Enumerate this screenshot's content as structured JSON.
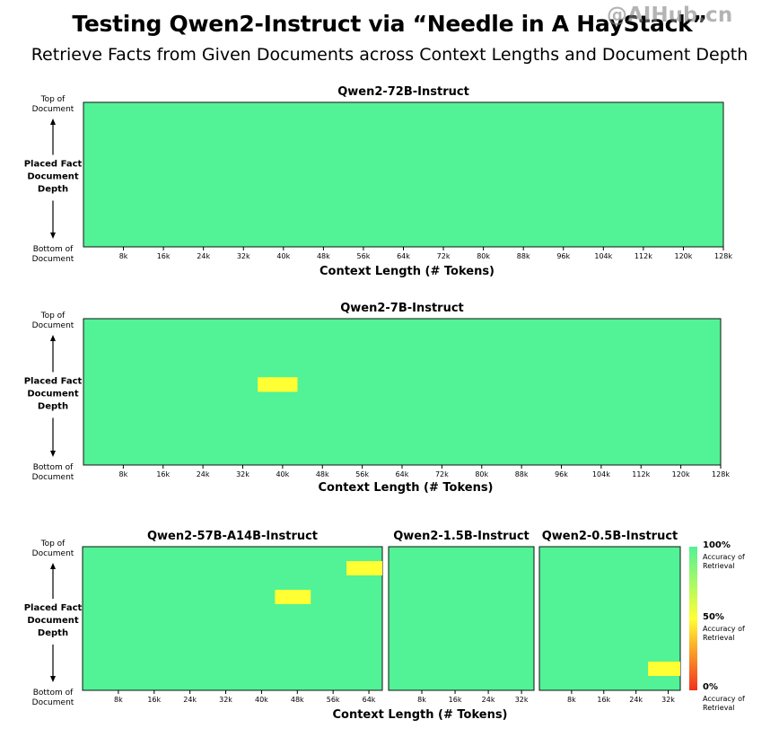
{
  "header": {
    "title": "Testing Qwen2-Instruct via “Needle in A HayStack”",
    "subtitle": "Retrieve Facts from Given Documents across Context Lengths and Document Depth",
    "watermark": "@AIHub.cn"
  },
  "y_axis": {
    "top": [
      "Top of",
      "Document"
    ],
    "middle": [
      "Placed Fact",
      "Document",
      "Depth"
    ],
    "bottom": [
      "Bottom of",
      "Document"
    ]
  },
  "colorbar": {
    "high": "100%",
    "mid": "50%",
    "low": "0%",
    "caption": [
      "Accuracy of",
      "Retrieval"
    ],
    "colors": [
      "#F2301C",
      "#FFFF33",
      "#52F296"
    ]
  },
  "chart_data": [
    {
      "type": "heatmap",
      "title": "Qwen2-72B-Instruct",
      "xlabel": "Context Length (# Tokens)",
      "ylabel": "Placed Fact Document Depth",
      "x_ticks": [
        "8k",
        "16k",
        "24k",
        "32k",
        "40k",
        "48k",
        "56k",
        "64k",
        "72k",
        "80k",
        "88k",
        "96k",
        "104k",
        "112k",
        "120k",
        "128k"
      ],
      "base_value": 1.0,
      "cells": []
    },
    {
      "type": "heatmap",
      "title": "Qwen2-7B-Instruct",
      "xlabel": "Context Length (# Tokens)",
      "ylabel": "Placed Fact Document Depth",
      "x_ticks": [
        "8k",
        "16k",
        "24k",
        "32k",
        "40k",
        "48k",
        "56k",
        "64k",
        "72k",
        "80k",
        "88k",
        "96k",
        "104k",
        "112k",
        "120k",
        "128k"
      ],
      "base_value": 1.0,
      "cells": [
        {
          "context_from": 35,
          "context_to": 43,
          "depth_from": 0.4,
          "depth_to": 0.5,
          "value": 0.5
        }
      ]
    },
    {
      "type": "heatmap",
      "title": "Qwen2-57B-A14B-Instruct",
      "xlabel": "Context Length (# Tokens)",
      "ylabel": "Placed Fact Document Depth",
      "x_ticks": [
        "8k",
        "16k",
        "24k",
        "32k",
        "40k",
        "48k",
        "56k",
        "64k"
      ],
      "base_value": 1.0,
      "cells": [
        {
          "context_from": 43,
          "context_to": 51,
          "depth_from": 0.3,
          "depth_to": 0.4,
          "value": 0.5
        },
        {
          "context_from": 59,
          "context_to": 67,
          "depth_from": 0.1,
          "depth_to": 0.2,
          "value": 0.5
        }
      ]
    },
    {
      "type": "heatmap",
      "title": "Qwen2-1.5B-Instruct",
      "xlabel": "",
      "x_ticks": [
        "8k",
        "16k",
        "24k",
        "32k"
      ],
      "base_value": 1.0,
      "cells": []
    },
    {
      "type": "heatmap",
      "title": "Qwen2-0.5B-Instruct",
      "xlabel": "",
      "x_ticks": [
        "8k",
        "16k",
        "24k",
        "32k"
      ],
      "base_value": 1.0,
      "cells": [
        {
          "context_from": 27,
          "context_to": 35,
          "depth_from": 0.8,
          "depth_to": 0.9,
          "value": 0.5
        }
      ]
    }
  ]
}
